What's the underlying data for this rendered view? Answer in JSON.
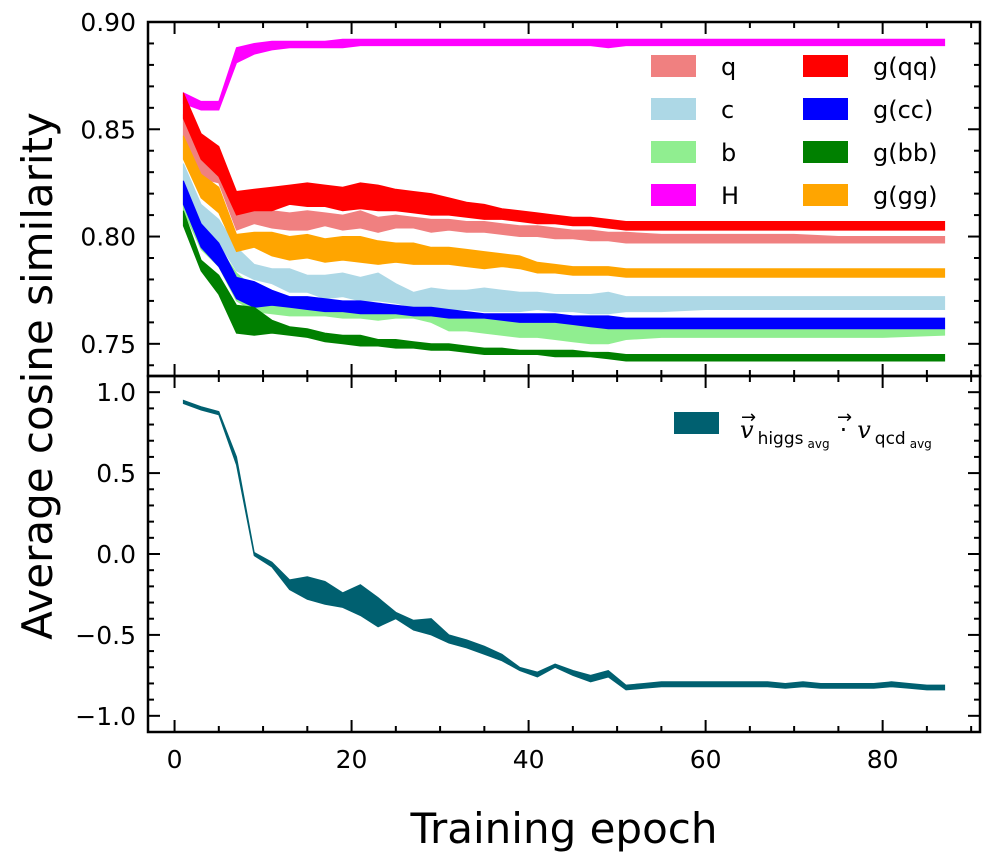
{
  "figure": {
    "xlabel": "Training epoch",
    "ylabel": "Average cosine similarity"
  },
  "chart_data": [
    {
      "type": "area",
      "panel": "top",
      "xlim": [
        -3,
        91
      ],
      "ylim": [
        0.735,
        0.9
      ],
      "xticks": [
        0,
        20,
        40,
        60,
        80
      ],
      "yticks": [
        0.75,
        0.8,
        0.85,
        0.9
      ],
      "ytick_labels": [
        "0.75",
        "0.80",
        "0.85",
        "0.90"
      ],
      "legend_position": "top-right",
      "series": [
        {
          "name": "q",
          "label": "q",
          "color": "#f08080",
          "x": [
            1,
            3,
            5,
            7,
            9,
            11,
            13,
            15,
            17,
            19,
            21,
            23,
            25,
            27,
            29,
            31,
            33,
            35,
            37,
            39,
            41,
            43,
            45,
            47,
            49,
            51,
            55,
            60,
            65,
            70,
            75,
            80,
            87
          ],
          "lower": [
            0.845,
            0.827,
            0.825,
            0.803,
            0.806,
            0.804,
            0.803,
            0.803,
            0.805,
            0.803,
            0.804,
            0.802,
            0.804,
            0.804,
            0.802,
            0.803,
            0.802,
            0.802,
            0.801,
            0.8,
            0.8,
            0.799,
            0.799,
            0.798,
            0.798,
            0.797,
            0.797,
            0.797,
            0.797,
            0.797,
            0.797,
            0.797,
            0.797
          ],
          "upper": [
            0.857,
            0.84,
            0.838,
            0.813,
            0.815,
            0.812,
            0.811,
            0.812,
            0.811,
            0.81,
            0.812,
            0.809,
            0.81,
            0.809,
            0.808,
            0.808,
            0.807,
            0.807,
            0.806,
            0.805,
            0.805,
            0.804,
            0.803,
            0.803,
            0.802,
            0.802,
            0.801,
            0.801,
            0.801,
            0.801,
            0.8,
            0.8,
            0.8
          ]
        },
        {
          "name": "c",
          "label": "c",
          "color": "#add8e6",
          "x": [
            1,
            3,
            5,
            7,
            9,
            11,
            13,
            15,
            17,
            19,
            21,
            23,
            25,
            27,
            29,
            31,
            33,
            35,
            37,
            39,
            41,
            43,
            45,
            47,
            49,
            51,
            55,
            60,
            65,
            70,
            75,
            80,
            87
          ],
          "lower": [
            0.822,
            0.805,
            0.797,
            0.784,
            0.78,
            0.778,
            0.774,
            0.774,
            0.771,
            0.772,
            0.77,
            0.77,
            0.769,
            0.767,
            0.767,
            0.766,
            0.766,
            0.765,
            0.765,
            0.765,
            0.766,
            0.765,
            0.765,
            0.764,
            0.764,
            0.765,
            0.765,
            0.766,
            0.766,
            0.766,
            0.766,
            0.766,
            0.766
          ],
          "upper": [
            0.834,
            0.815,
            0.808,
            0.795,
            0.787,
            0.785,
            0.785,
            0.782,
            0.782,
            0.783,
            0.781,
            0.783,
            0.778,
            0.774,
            0.776,
            0.775,
            0.775,
            0.776,
            0.775,
            0.774,
            0.774,
            0.773,
            0.773,
            0.773,
            0.774,
            0.772,
            0.772,
            0.772,
            0.772,
            0.772,
            0.772,
            0.772,
            0.772
          ]
        },
        {
          "name": "b",
          "label": "b",
          "color": "#90ee90",
          "x": [
            1,
            3,
            5,
            7,
            9,
            11,
            13,
            15,
            17,
            19,
            21,
            23,
            25,
            27,
            29,
            31,
            33,
            35,
            37,
            39,
            41,
            43,
            45,
            47,
            49,
            51,
            55,
            60,
            65,
            70,
            75,
            80,
            87
          ],
          "lower": [
            0.812,
            0.794,
            0.786,
            0.77,
            0.765,
            0.764,
            0.763,
            0.763,
            0.763,
            0.762,
            0.762,
            0.761,
            0.762,
            0.762,
            0.76,
            0.756,
            0.756,
            0.755,
            0.754,
            0.753,
            0.753,
            0.752,
            0.751,
            0.75,
            0.75,
            0.752,
            0.753,
            0.753,
            0.753,
            0.753,
            0.753,
            0.753,
            0.754
          ],
          "upper": [
            0.822,
            0.804,
            0.795,
            0.783,
            0.776,
            0.772,
            0.77,
            0.768,
            0.768,
            0.766,
            0.766,
            0.765,
            0.765,
            0.765,
            0.764,
            0.764,
            0.763,
            0.763,
            0.762,
            0.761,
            0.761,
            0.761,
            0.761,
            0.76,
            0.759,
            0.759,
            0.758,
            0.757,
            0.757,
            0.757,
            0.757,
            0.757,
            0.757
          ]
        },
        {
          "name": "H",
          "label": "H",
          "color": "#ff00ff",
          "x": [
            1,
            3,
            5,
            7,
            9,
            11,
            13,
            15,
            17,
            19,
            21,
            23,
            25,
            27,
            29,
            31,
            33,
            35,
            37,
            39,
            41,
            43,
            45,
            47,
            49,
            51,
            55,
            60,
            65,
            70,
            75,
            80,
            87
          ],
          "lower": [
            0.862,
            0.859,
            0.859,
            0.881,
            0.885,
            0.887,
            0.888,
            0.888,
            0.888,
            0.888,
            0.889,
            0.889,
            0.889,
            0.889,
            0.889,
            0.889,
            0.889,
            0.889,
            0.889,
            0.889,
            0.889,
            0.889,
            0.889,
            0.889,
            0.888,
            0.889,
            0.889,
            0.889,
            0.889,
            0.889,
            0.889,
            0.889,
            0.889
          ],
          "upper": [
            0.867,
            0.863,
            0.863,
            0.888,
            0.89,
            0.891,
            0.891,
            0.891,
            0.891,
            0.892,
            0.892,
            0.892,
            0.892,
            0.892,
            0.892,
            0.892,
            0.892,
            0.892,
            0.892,
            0.892,
            0.892,
            0.892,
            0.892,
            0.892,
            0.892,
            0.892,
            0.892,
            0.892,
            0.892,
            0.892,
            0.892,
            0.892,
            0.892
          ]
        },
        {
          "name": "g(qq)",
          "label": "g(qq)",
          "color": "#ff0000",
          "x": [
            1,
            3,
            5,
            7,
            9,
            11,
            13,
            15,
            17,
            19,
            21,
            23,
            25,
            27,
            29,
            31,
            33,
            35,
            37,
            39,
            41,
            43,
            45,
            47,
            49,
            51,
            55,
            60,
            65,
            70,
            75,
            80,
            87
          ],
          "lower": [
            0.855,
            0.836,
            0.828,
            0.81,
            0.812,
            0.812,
            0.815,
            0.814,
            0.814,
            0.812,
            0.813,
            0.812,
            0.812,
            0.811,
            0.81,
            0.81,
            0.809,
            0.808,
            0.808,
            0.807,
            0.806,
            0.806,
            0.805,
            0.805,
            0.804,
            0.803,
            0.803,
            0.803,
            0.803,
            0.803,
            0.803,
            0.803,
            0.803
          ],
          "upper": [
            0.867,
            0.848,
            0.842,
            0.821,
            0.822,
            0.823,
            0.824,
            0.825,
            0.824,
            0.823,
            0.825,
            0.824,
            0.822,
            0.821,
            0.82,
            0.818,
            0.816,
            0.815,
            0.813,
            0.812,
            0.811,
            0.81,
            0.809,
            0.809,
            0.808,
            0.807,
            0.807,
            0.807,
            0.807,
            0.807,
            0.807,
            0.807,
            0.807
          ]
        },
        {
          "name": "g(cc)",
          "label": "g(cc)",
          "color": "#0000ff",
          "x": [
            1,
            3,
            5,
            7,
            9,
            11,
            13,
            15,
            17,
            19,
            21,
            23,
            25,
            27,
            29,
            31,
            33,
            35,
            37,
            39,
            41,
            43,
            45,
            47,
            49,
            51,
            55,
            60,
            65,
            70,
            75,
            80,
            87
          ],
          "lower": [
            0.815,
            0.795,
            0.786,
            0.771,
            0.767,
            0.768,
            0.767,
            0.766,
            0.765,
            0.765,
            0.764,
            0.764,
            0.764,
            0.763,
            0.763,
            0.762,
            0.762,
            0.762,
            0.761,
            0.76,
            0.76,
            0.76,
            0.759,
            0.758,
            0.757,
            0.757,
            0.757,
            0.757,
            0.757,
            0.757,
            0.757,
            0.757,
            0.757
          ],
          "upper": [
            0.826,
            0.806,
            0.797,
            0.781,
            0.779,
            0.775,
            0.772,
            0.772,
            0.771,
            0.77,
            0.77,
            0.769,
            0.768,
            0.767,
            0.767,
            0.766,
            0.765,
            0.764,
            0.764,
            0.764,
            0.764,
            0.764,
            0.763,
            0.763,
            0.763,
            0.762,
            0.762,
            0.762,
            0.762,
            0.762,
            0.762,
            0.762,
            0.762
          ]
        },
        {
          "name": "g(bb)",
          "label": "g(bb)",
          "color": "#008000",
          "x": [
            1,
            3,
            5,
            7,
            9,
            11,
            13,
            15,
            17,
            19,
            21,
            23,
            25,
            27,
            29,
            31,
            33,
            35,
            37,
            39,
            41,
            43,
            45,
            47,
            49,
            51,
            55,
            60,
            65,
            70,
            75,
            80,
            87
          ],
          "lower": [
            0.805,
            0.784,
            0.773,
            0.755,
            0.754,
            0.755,
            0.754,
            0.753,
            0.751,
            0.75,
            0.749,
            0.749,
            0.748,
            0.748,
            0.747,
            0.747,
            0.746,
            0.745,
            0.745,
            0.745,
            0.745,
            0.744,
            0.744,
            0.744,
            0.743,
            0.742,
            0.742,
            0.742,
            0.742,
            0.742,
            0.742,
            0.742,
            0.742
          ],
          "upper": [
            0.812,
            0.789,
            0.782,
            0.768,
            0.767,
            0.761,
            0.758,
            0.757,
            0.755,
            0.754,
            0.754,
            0.752,
            0.752,
            0.751,
            0.75,
            0.75,
            0.749,
            0.748,
            0.748,
            0.747,
            0.747,
            0.747,
            0.747,
            0.746,
            0.746,
            0.745,
            0.745,
            0.745,
            0.745,
            0.745,
            0.745,
            0.745,
            0.745
          ]
        },
        {
          "name": "g(gg)",
          "label": "g(gg)",
          "color": "#ffa500",
          "x": [
            1,
            3,
            5,
            7,
            9,
            11,
            13,
            15,
            17,
            19,
            21,
            23,
            25,
            27,
            29,
            31,
            33,
            35,
            37,
            39,
            41,
            43,
            45,
            47,
            49,
            51,
            55,
            60,
            65,
            70,
            75,
            80,
            87
          ],
          "lower": [
            0.836,
            0.818,
            0.811,
            0.793,
            0.795,
            0.791,
            0.789,
            0.79,
            0.788,
            0.789,
            0.788,
            0.787,
            0.788,
            0.787,
            0.787,
            0.787,
            0.786,
            0.785,
            0.786,
            0.785,
            0.783,
            0.783,
            0.782,
            0.782,
            0.782,
            0.781,
            0.781,
            0.781,
            0.781,
            0.781,
            0.781,
            0.781,
            0.781
          ],
          "upper": [
            0.847,
            0.829,
            0.823,
            0.801,
            0.802,
            0.802,
            0.8,
            0.801,
            0.799,
            0.8,
            0.8,
            0.798,
            0.797,
            0.797,
            0.795,
            0.795,
            0.794,
            0.793,
            0.792,
            0.791,
            0.788,
            0.787,
            0.786,
            0.786,
            0.786,
            0.785,
            0.785,
            0.785,
            0.785,
            0.785,
            0.785,
            0.785,
            0.785
          ]
        }
      ]
    },
    {
      "type": "area",
      "panel": "bottom",
      "xlim": [
        -3,
        91
      ],
      "ylim": [
        -1.1,
        1.1
      ],
      "xticks": [
        0,
        20,
        40,
        60,
        80
      ],
      "xtick_labels": [
        "0",
        "20",
        "40",
        "60",
        "80"
      ],
      "yticks": [
        -1.0,
        -0.5,
        0.0,
        0.5,
        1.0
      ],
      "ytick_labels": [
        "−1.0",
        "−0.5",
        "0.0",
        "0.5",
        "1.0"
      ],
      "legend_position": "top-right",
      "series": [
        {
          "name": "v_higgs_avg · v_qcd_avg",
          "color": "#006070",
          "legend": {
            "v": "v",
            "arrow": "→",
            "higgs": "higgs",
            "qcd": "qcd",
            "sub": "avg",
            "dot": "·"
          },
          "x": [
            1,
            3,
            5,
            7,
            9,
            11,
            13,
            15,
            17,
            19,
            21,
            23,
            25,
            27,
            29,
            31,
            33,
            35,
            37,
            39,
            41,
            43,
            45,
            47,
            49,
            51,
            53,
            55,
            57,
            59,
            61,
            63,
            65,
            67,
            69,
            71,
            73,
            75,
            77,
            79,
            81,
            83,
            85,
            87
          ],
          "lower": [
            0.93,
            0.89,
            0.86,
            0.55,
            -0.01,
            -0.08,
            -0.22,
            -0.28,
            -0.31,
            -0.33,
            -0.38,
            -0.45,
            -0.4,
            -0.47,
            -0.5,
            -0.55,
            -0.58,
            -0.62,
            -0.66,
            -0.72,
            -0.76,
            -0.7,
            -0.75,
            -0.79,
            -0.76,
            -0.84,
            -0.83,
            -0.82,
            -0.82,
            -0.82,
            -0.82,
            -0.82,
            -0.82,
            -0.82,
            -0.83,
            -0.82,
            -0.83,
            -0.83,
            -0.83,
            -0.83,
            -0.82,
            -0.83,
            -0.84,
            -0.84
          ],
          "upper": [
            0.95,
            0.91,
            0.88,
            0.6,
            0.01,
            -0.05,
            -0.16,
            -0.14,
            -0.17,
            -0.24,
            -0.19,
            -0.27,
            -0.36,
            -0.41,
            -0.4,
            -0.5,
            -0.53,
            -0.57,
            -0.62,
            -0.7,
            -0.73,
            -0.68,
            -0.72,
            -0.75,
            -0.72,
            -0.81,
            -0.8,
            -0.79,
            -0.79,
            -0.79,
            -0.79,
            -0.79,
            -0.79,
            -0.79,
            -0.8,
            -0.79,
            -0.8,
            -0.8,
            -0.8,
            -0.8,
            -0.79,
            -0.8,
            -0.81,
            -0.81
          ]
        }
      ]
    }
  ]
}
